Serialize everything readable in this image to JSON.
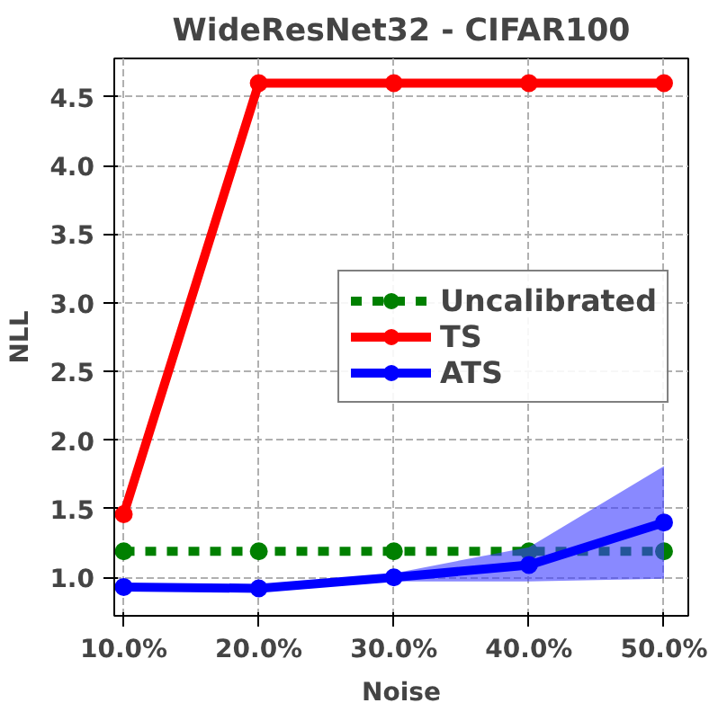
{
  "chart_data": {
    "type": "line",
    "title": "WideResNet32 - CIFAR100",
    "xlabel": "Noise",
    "ylabel": "NLL",
    "x": [
      10,
      20,
      30,
      40,
      50
    ],
    "xlim": [
      9.3,
      51.8
    ],
    "xticks": [
      {
        "value": 10,
        "label": "10.0%"
      },
      {
        "value": 20,
        "label": "20.0%"
      },
      {
        "value": 30,
        "label": "30.0%"
      },
      {
        "value": 40,
        "label": "40.0%"
      },
      {
        "value": 50,
        "label": "50.0%"
      }
    ],
    "ylim": [
      0.72,
      4.78
    ],
    "yticks": [
      {
        "value": 1,
        "label": "1.0"
      },
      {
        "value": 1.5,
        "label": "1.5"
      },
      {
        "value": 2,
        "label": "2.0"
      },
      {
        "value": 2.5,
        "label": "2.5"
      },
      {
        "value": 3,
        "label": "3.0"
      },
      {
        "value": 3.5,
        "label": "3.5"
      },
      {
        "value": 4,
        "label": "4.0"
      },
      {
        "value": 4.5,
        "label": "4.5"
      }
    ],
    "series": [
      {
        "name": "Uncalibrated",
        "color": "#008000",
        "values": [
          1.19,
          1.19,
          1.19,
          1.19,
          1.19
        ],
        "line_style": "dashed"
      },
      {
        "name": "TS",
        "color": "#ff0000",
        "values": [
          1.46,
          4.6,
          4.6,
          4.6,
          4.6
        ]
      },
      {
        "name": "ATS",
        "color": "#0000ff",
        "values": [
          0.93,
          0.92,
          1.0,
          1.09,
          1.4
        ],
        "lower": [
          0.93,
          0.92,
          0.97,
          0.97,
          0.99
        ],
        "upper": [
          0.95,
          0.93,
          1.03,
          1.22,
          1.81
        ]
      }
    ],
    "marker": "circle",
    "line_style": "solid",
    "grid": true,
    "legend": "right"
  }
}
